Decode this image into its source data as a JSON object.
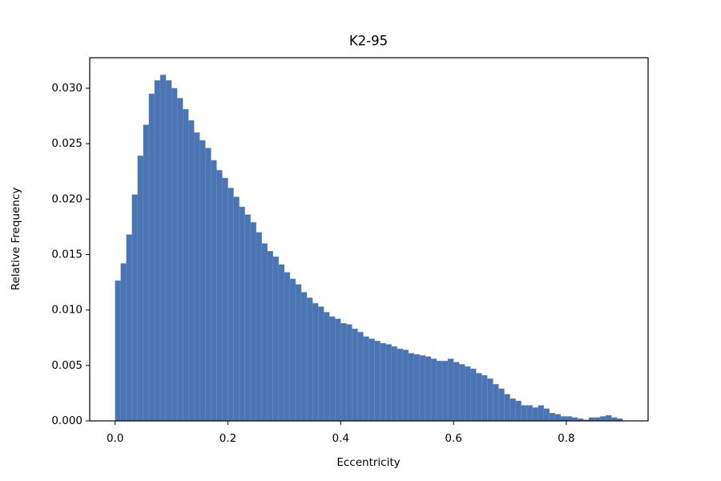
{
  "chart_data": {
    "type": "histogram",
    "title": "K2-95",
    "x_label": "Eccentricity",
    "y_label": "Relative Frequency",
    "color": "#4a74b2",
    "bins": [
      0,
      0.01,
      0.02,
      0.03,
      0.04,
      0.05,
      0.06,
      0.07,
      0.08,
      0.09,
      0.1,
      0.11,
      0.12,
      0.13,
      0.14,
      0.15,
      0.16,
      0.17,
      0.18,
      0.19,
      0.2,
      0.21,
      0.22,
      0.23,
      0.24,
      0.25,
      0.26,
      0.27,
      0.28,
      0.29,
      0.3,
      0.31,
      0.32,
      0.33,
      0.34,
      0.35,
      0.36,
      0.37,
      0.38,
      0.39,
      0.4,
      0.41,
      0.42,
      0.43,
      0.44,
      0.45,
      0.46,
      0.47,
      0.48,
      0.49,
      0.5,
      0.51,
      0.52,
      0.53,
      0.54,
      0.55,
      0.56,
      0.57,
      0.58,
      0.59,
      0.6,
      0.61,
      0.62,
      0.63,
      0.64,
      0.65,
      0.66,
      0.67,
      0.68,
      0.69,
      0.7,
      0.71,
      0.72,
      0.73,
      0.74,
      0.75,
      0.76,
      0.77,
      0.78,
      0.79,
      0.8,
      0.81,
      0.82,
      0.83,
      0.84,
      0.85,
      0.86,
      0.87,
      0.88,
      0.89,
      0.9
    ],
    "values": [
      0.01265,
      0.0142,
      0.0168,
      0.0204,
      0.0239,
      0.0267,
      0.0295,
      0.0307,
      0.0312,
      0.0307,
      0.03,
      0.0291,
      0.0281,
      0.0271,
      0.026,
      0.0253,
      0.0246,
      0.0235,
      0.0226,
      0.0219,
      0.021,
      0.0202,
      0.0193,
      0.0186,
      0.0179,
      0.017,
      0.016,
      0.0153,
      0.0148,
      0.0141,
      0.0134,
      0.0128,
      0.0123,
      0.0116,
      0.0111,
      0.0106,
      0.0103,
      0.0098,
      0.0094,
      0.0092,
      0.0088,
      0.0087,
      0.0083,
      0.008,
      0.0076,
      0.0074,
      0.0072,
      0.007,
      0.0069,
      0.0067,
      0.0065,
      0.0064,
      0.0061,
      0.006,
      0.0059,
      0.0058,
      0.0056,
      0.0054,
      0.0054,
      0.0056,
      0.0053,
      0.0051,
      0.0049,
      0.0047,
      0.0043,
      0.0041,
      0.0038,
      0.0033,
      0.0029,
      0.0024,
      0.002,
      0.0018,
      0.0014,
      0.0014,
      0.0012,
      0.0014,
      0.0011,
      0.0007,
      0.0006,
      0.0004,
      0.0004,
      0.0003,
      0.0002,
      0.0001,
      0.0003,
      0.0003,
      0.0004,
      0.0005,
      0.0003,
      0.0002
    ],
    "xlim": [
      -0.045,
      0.945
    ],
    "xticks": [
      {
        "value": 0,
        "label": "0.0"
      },
      0.2,
      0.4,
      0.6,
      0.8
    ],
    "ylim": [
      0,
      0.03275
    ],
    "yticks": [
      {
        "value": 0,
        "label": "0.000"
      },
      0.005,
      {
        "value": 0.01,
        "label": "0.010"
      },
      0.015,
      {
        "value": 0.02,
        "label": "0.020"
      },
      0.025,
      {
        "value": 0.03,
        "label": "0.030"
      }
    ]
  }
}
